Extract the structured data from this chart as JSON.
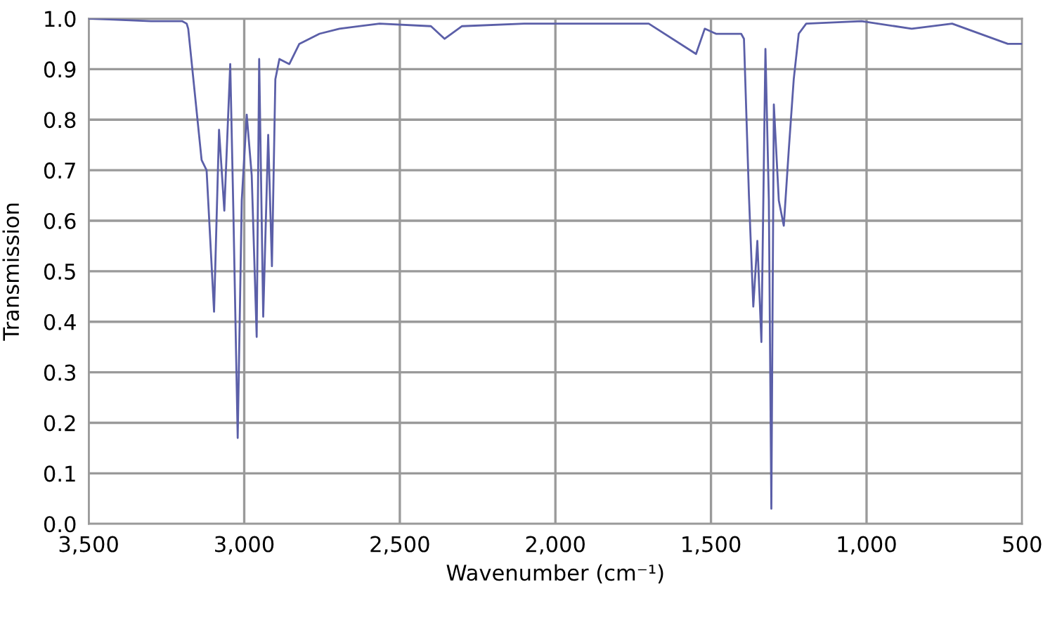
{
  "chart_data": {
    "type": "line",
    "xlabel": "Wavenumber (cm⁻¹)",
    "ylabel": "Transmission",
    "x": [
      3500,
      3300,
      3200,
      3185,
      3180,
      3137,
      3121,
      3097,
      3081,
      3064,
      3045,
      3035,
      3021,
      3008,
      2992,
      2976,
      2960,
      2952,
      2939,
      2923,
      2911,
      2900,
      2887,
      2855,
      2823,
      2758,
      2694,
      2565,
      2400,
      2356,
      2300,
      2100,
      1700,
      1548,
      1520,
      1484,
      1403,
      1394,
      1378,
      1364,
      1351,
      1338,
      1325,
      1314,
      1306,
      1298,
      1282,
      1266,
      1250,
      1234,
      1218,
      1194,
      1016,
      855,
      725,
      546,
      500
    ],
    "series": [
      {
        "color": "#5b5fa8",
        "values": [
          1.0,
          0.995,
          0.995,
          0.99,
          0.98,
          0.72,
          0.7,
          0.42,
          0.78,
          0.62,
          0.91,
          0.62,
          0.17,
          0.64,
          0.81,
          0.69,
          0.37,
          0.92,
          0.41,
          0.77,
          0.51,
          0.88,
          0.92,
          0.91,
          0.95,
          0.97,
          0.98,
          0.99,
          0.985,
          0.96,
          0.985,
          0.99,
          0.99,
          0.93,
          0.98,
          0.97,
          0.97,
          0.96,
          0.65,
          0.43,
          0.56,
          0.36,
          0.94,
          0.64,
          0.03,
          0.83,
          0.64,
          0.59,
          0.74,
          0.88,
          0.97,
          0.99,
          0.995,
          0.98,
          0.99,
          0.95,
          0.95
        ]
      }
    ],
    "xlim": [
      3500,
      500
    ],
    "ylim": [
      0,
      1.0
    ],
    "xticks": [
      {
        "value": 3500,
        "label": "3,500"
      },
      {
        "value": 3000,
        "label": "3,000"
      },
      {
        "value": 2500,
        "label": "2,500"
      },
      {
        "value": 2000,
        "label": "2,000"
      },
      {
        "value": 1500,
        "label": "1,500"
      },
      {
        "value": 1000,
        "label": "1,000"
      },
      {
        "value": 500,
        "label": "500"
      }
    ],
    "yticks": [
      {
        "value": 0,
        "label": "0.0"
      },
      {
        "value": 0.1,
        "label": "0.1"
      },
      {
        "value": 0.2,
        "label": "0.2"
      },
      {
        "value": 0.3,
        "label": "0.3"
      },
      {
        "value": 0.4,
        "label": "0.4"
      },
      {
        "value": 0.5,
        "label": "0.5"
      },
      {
        "value": 0.6,
        "label": "0.6"
      },
      {
        "value": 0.7,
        "label": "0.7"
      },
      {
        "value": 0.8,
        "label": "0.8"
      },
      {
        "value": 0.9,
        "label": "0.9"
      },
      {
        "value": 1.0,
        "label": "1.0"
      }
    ],
    "grid": true,
    "marker": "none",
    "line_style": "solid"
  }
}
